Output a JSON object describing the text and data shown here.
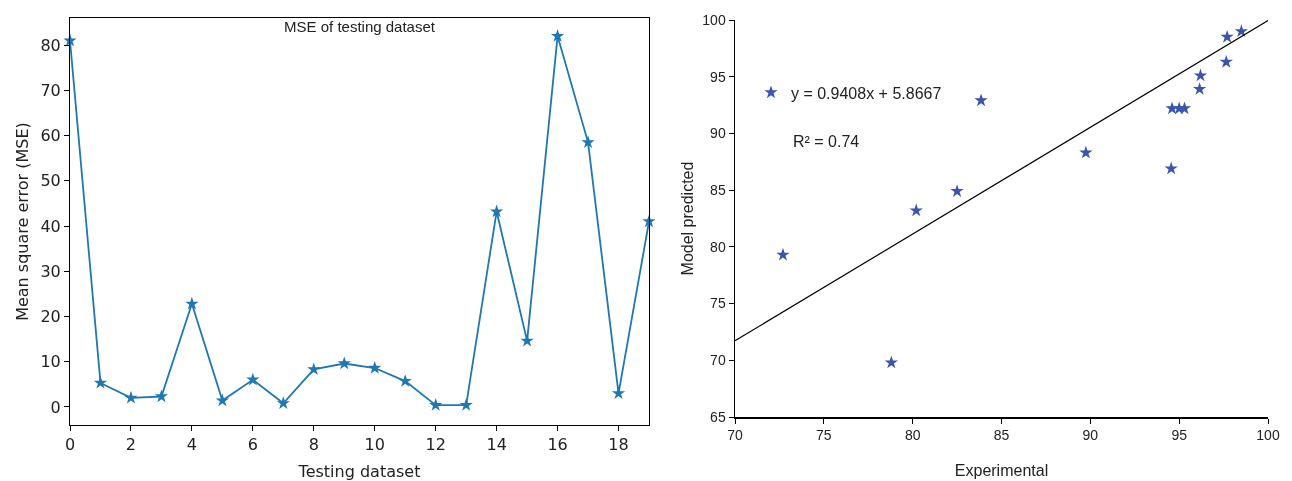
{
  "chart_data": [
    {
      "type": "line",
      "title": "MSE of testing dataset",
      "xlabel": "Testing dataset",
      "ylabel": "Mean square error (MSE)",
      "x": [
        0,
        1,
        2,
        3,
        4,
        5,
        6,
        7,
        8,
        9,
        10,
        11,
        12,
        13,
        14,
        15,
        16,
        17,
        18,
        19
      ],
      "series": [
        {
          "color": "#1f77b4",
          "values": [
            81,
            5.3,
            2,
            2.3,
            22.8,
            1.4,
            6,
            0.8,
            8.3,
            9.6,
            8.6,
            5.7,
            0.4,
            0.4,
            43.2,
            14.6,
            82,
            58.5,
            3,
            41
          ]
        }
      ],
      "xlim": [
        0,
        19
      ],
      "xticks": [
        0,
        2,
        4,
        6,
        8,
        10,
        12,
        14,
        16,
        18
      ],
      "ylim": [
        -4,
        86
      ],
      "yticks": [
        0,
        10,
        20,
        30,
        40,
        50,
        60,
        70,
        80
      ],
      "grid": false,
      "legend": false,
      "marker": "star",
      "line_style": "solid"
    },
    {
      "type": "scatter",
      "xlabel": "Experimental",
      "ylabel": "Model predicted",
      "annotations": [
        "R² = 0.74"
      ],
      "series": [
        {
          "name": "y = 0.9408x + 5.8667",
          "color": "#3a55b0",
          "x": [
            72.7,
            78.8,
            80.2,
            82.5,
            83.85,
            89.75,
            94.55,
            94.6,
            95.0,
            95.3,
            96.15,
            96.2,
            97.65,
            97.7,
            98.5
          ],
          "values": [
            79.3,
            69.8,
            83.2,
            84.9,
            92.9,
            88.3,
            86.9,
            92.2,
            92.2,
            92.2,
            93.9,
            95.1,
            96.3,
            98.5,
            99.0
          ]
        },
        {
          "type": "line",
          "color": "#000000",
          "marker": "none",
          "x": [
            70,
            100
          ],
          "values": [
            71.72,
            99.95
          ]
        }
      ],
      "xlim": [
        70,
        100
      ],
      "xticks": [
        70,
        75,
        80,
        85,
        90,
        95,
        100
      ],
      "ylim": [
        65,
        100
      ],
      "yticks": [
        65,
        70,
        75,
        80,
        85,
        90,
        95,
        100
      ],
      "grid": false,
      "legend": "top left",
      "marker": "star"
    }
  ]
}
